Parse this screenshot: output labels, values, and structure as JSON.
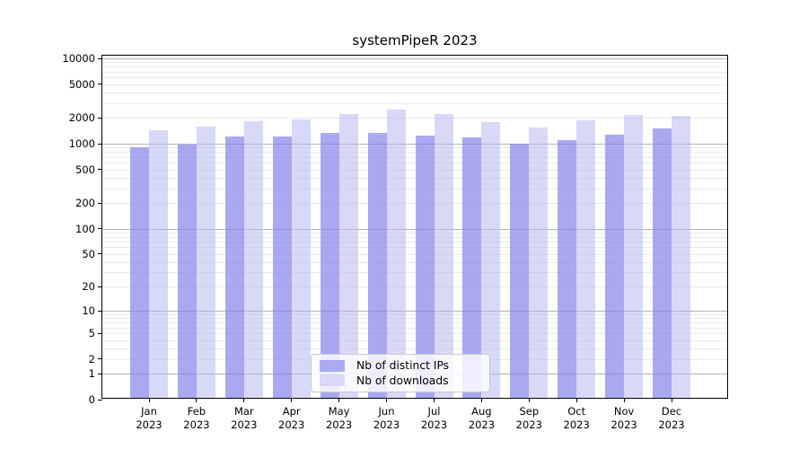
{
  "title": "systemPipeR 2023",
  "chart_data": {
    "type": "bar",
    "title": "systemPipeR 2023",
    "categories": [
      "Jan",
      "Feb",
      "Mar",
      "Apr",
      "May",
      "Jun",
      "Jul",
      "Aug",
      "Sep",
      "Oct",
      "Nov",
      "Dec"
    ],
    "year_label": "2023",
    "series": [
      {
        "name": "Nb of distinct IPs",
        "color": "#8585eb",
        "alpha": 0.7,
        "legend_color": "#aaaaf1",
        "values": [
          860,
          940,
          1170,
          1150,
          1260,
          1290,
          1190,
          1120,
          960,
          1060,
          1220,
          1440
        ]
      },
      {
        "name": "Nb of downloads",
        "color": "#b4b4f0",
        "alpha": 0.52,
        "legend_color": "#d8d8f7",
        "values": [
          1370,
          1510,
          1750,
          1830,
          2100,
          2400,
          2100,
          1700,
          1480,
          1790,
          2060,
          2020
        ]
      }
    ],
    "yticks": [
      0,
      1,
      2,
      5,
      10,
      20,
      50,
      100,
      200,
      500,
      1000,
      2000,
      5000,
      10000
    ],
    "scale": "log1p",
    "ylim": [
      0,
      10700
    ],
    "grid": true,
    "legend_position": "bottom-center",
    "colors": {
      "major_grid": "#b3b3b3",
      "minor_grid": "#e9e9e9",
      "axis": "#000000",
      "background": "#ffffff"
    }
  }
}
